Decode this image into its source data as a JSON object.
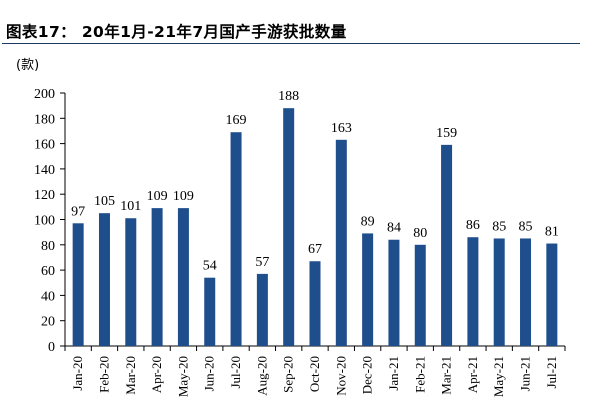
{
  "figure_title": "图表17： 20年1月-21年7月国产手游获批数量",
  "chart_data": {
    "type": "bar",
    "unit": "(款)",
    "categories": [
      "Jan-20",
      "Feb-20",
      "Mar-20",
      "Apr-20",
      "May-20",
      "Jun-20",
      "Jul-20",
      "Aug-20",
      "Sep-20",
      "Oct-20",
      "Nov-20",
      "Dec-20",
      "Jan-21",
      "Feb-21",
      "Mar-21",
      "Apr-21",
      "May-21",
      "Jun-21",
      "Jul-21"
    ],
    "values": [
      97,
      105,
      101,
      109,
      109,
      54,
      169,
      57,
      188,
      67,
      163,
      89,
      84,
      80,
      159,
      86,
      85,
      85,
      81
    ],
    "ylim": [
      0,
      200
    ],
    "yticks": [
      0,
      20,
      40,
      60,
      80,
      100,
      120,
      140,
      160,
      180,
      200
    ],
    "bar_color": "#1f4e8c",
    "data_labels": true,
    "grid": false,
    "legend": "none"
  }
}
